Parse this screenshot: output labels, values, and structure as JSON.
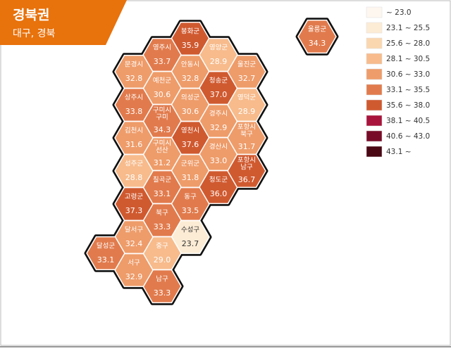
{
  "header": {
    "title": "경북권",
    "subtitle": "대구, 경북"
  },
  "legend": [
    {
      "label": "~ 23.0",
      "color": "#fdf7f0"
    },
    {
      "label": "23.1 ~ 25.5",
      "color": "#fdecd5"
    },
    {
      "label": "25.6 ~ 28.0",
      "color": "#fbd7b0"
    },
    {
      "label": "28.1 ~ 30.5",
      "color": "#f7bb8c"
    },
    {
      "label": "30.6 ~ 33.0",
      "color": "#ee9c6a"
    },
    {
      "label": "33.1 ~ 35.5",
      "color": "#e17b4d"
    },
    {
      "label": "35.6 ~ 38.0",
      "color": "#d05a30"
    },
    {
      "label": "38.1 ~ 40.5",
      "color": "#a8143c"
    },
    {
      "label": "40.6 ~ 43.0",
      "color": "#780c28"
    },
    {
      "label": "43.1 ~",
      "color": "#4a0714"
    }
  ],
  "regions": [
    {
      "name": [
        "봉화군"
      ],
      "value": "35.9",
      "color": "#d05a30"
    },
    {
      "name": [
        "안동시"
      ],
      "value": "32.8",
      "color": "#ee9c6a"
    },
    {
      "name": [
        "의성군"
      ],
      "value": "30.6",
      "color": "#ee9c6a"
    },
    {
      "name": [
        "영천시"
      ],
      "value": "37.6",
      "color": "#d05a30"
    },
    {
      "name": [
        "군위군"
      ],
      "value": "31.8",
      "color": "#ee9c6a"
    },
    {
      "name": [
        "동구"
      ],
      "value": "33.5",
      "color": "#e17b4d"
    },
    {
      "name": [
        "수성구"
      ],
      "value": "23.7",
      "color": "#fdecd5"
    },
    {
      "name": [
        "영주시"
      ],
      "value": "33.7",
      "color": "#e17b4d"
    },
    {
      "name": [
        "예천군"
      ],
      "value": "30.6",
      "color": "#ee9c6a"
    },
    {
      "name": [
        "구미시",
        "구미"
      ],
      "value": "34.3",
      "color": "#e17b4d"
    },
    {
      "name": [
        "구미시",
        "선산"
      ],
      "value": "31.2",
      "color": "#ee9c6a"
    },
    {
      "name": [
        "칠곡군"
      ],
      "value": "33.1",
      "color": "#e17b4d"
    },
    {
      "name": [
        "북구"
      ],
      "value": "33.3",
      "color": "#e17b4d"
    },
    {
      "name": [
        "중구"
      ],
      "value": "29.0",
      "color": "#f7bb8c"
    },
    {
      "name": [
        "남구"
      ],
      "value": "33.3",
      "color": "#e17b4d"
    },
    {
      "name": [
        "문경시"
      ],
      "value": "32.8",
      "color": "#ee9c6a"
    },
    {
      "name": [
        "상주시"
      ],
      "value": "33.8",
      "color": "#e17b4d"
    },
    {
      "name": [
        "김천시"
      ],
      "value": "31.6",
      "color": "#ee9c6a"
    },
    {
      "name": [
        "성주군"
      ],
      "value": "28.8",
      "color": "#f7bb8c"
    },
    {
      "name": [
        "고령군"
      ],
      "value": "37.3",
      "color": "#d05a30"
    },
    {
      "name": [
        "달서구"
      ],
      "value": "32.4",
      "color": "#ee9c6a"
    },
    {
      "name": [
        "서구"
      ],
      "value": "32.9",
      "color": "#ee9c6a"
    },
    {
      "name": [
        "달성군"
      ],
      "value": "33.1",
      "color": "#e17b4d"
    },
    {
      "name": [
        "영양군"
      ],
      "value": "28.9",
      "color": "#f7bb8c"
    },
    {
      "name": [
        "청송군"
      ],
      "value": "37.0",
      "color": "#d05a30"
    },
    {
      "name": [
        "경주시"
      ],
      "value": "32.9",
      "color": "#ee9c6a"
    },
    {
      "name": [
        "경산시"
      ],
      "value": "33.0",
      "color": "#ee9c6a"
    },
    {
      "name": [
        "청도군"
      ],
      "value": "36.0",
      "color": "#d05a30"
    },
    {
      "name": [
        "울진군"
      ],
      "value": "32.7",
      "color": "#ee9c6a"
    },
    {
      "name": [
        "영덕군"
      ],
      "value": "28.9",
      "color": "#f7bb8c"
    },
    {
      "name": [
        "포항시",
        "북구"
      ],
      "value": "31.7",
      "color": "#ee9c6a"
    },
    {
      "name": [
        "포항시",
        "남구"
      ],
      "value": "36.7",
      "color": "#d05a30"
    },
    {
      "name": [
        "울릉군"
      ],
      "value": "34.3",
      "color": "#e17b4d"
    }
  ]
}
